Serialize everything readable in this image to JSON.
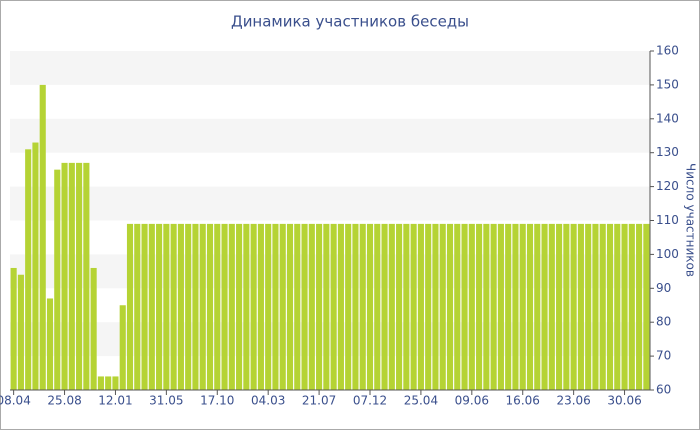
{
  "chart_data": {
    "type": "bar",
    "title": "Динамика участников беседы",
    "y_label": "Число участников",
    "categories": [
      "08.04",
      null,
      null,
      null,
      null,
      null,
      null,
      "25.08",
      null,
      null,
      null,
      null,
      null,
      null,
      "12.01",
      null,
      null,
      null,
      null,
      null,
      null,
      "31.05",
      null,
      null,
      null,
      null,
      null,
      null,
      "17.10",
      null,
      null,
      null,
      null,
      null,
      null,
      "04.03",
      null,
      null,
      null,
      null,
      null,
      null,
      "21.07",
      null,
      null,
      null,
      null,
      null,
      null,
      "07.12",
      null,
      null,
      null,
      null,
      null,
      null,
      "25.04",
      null,
      null,
      null,
      null,
      null,
      null,
      "09.06",
      null,
      null,
      null,
      null,
      null,
      null,
      "16.06",
      null,
      null,
      null,
      null,
      null,
      null,
      "23.06",
      null,
      null,
      null,
      null,
      null,
      null,
      "30.06",
      null,
      null,
      null
    ],
    "values": [
      96,
      94,
      131,
      133,
      150,
      87,
      125,
      127,
      127,
      127,
      127,
      96,
      64,
      64,
      64,
      85,
      109,
      109,
      109,
      109,
      109,
      109,
      109,
      109,
      109,
      109,
      109,
      109,
      109,
      109,
      109,
      109,
      109,
      109,
      109,
      109,
      109,
      109,
      109,
      109,
      109,
      109,
      109,
      109,
      109,
      109,
      109,
      109,
      109,
      109,
      109,
      109,
      109,
      109,
      109,
      109,
      109,
      109,
      109,
      109,
      109,
      109,
      109,
      109,
      109,
      109,
      109,
      109,
      109,
      109,
      109,
      109,
      109,
      109,
      109,
      109,
      109,
      109,
      109,
      109,
      109,
      109,
      109,
      109,
      109,
      109,
      109,
      109
    ],
    "color": "#b5d334",
    "ylim": [
      60,
      160
    ],
    "yticks": [
      60,
      70,
      80,
      90,
      100,
      110,
      120,
      130,
      140,
      150,
      160
    ],
    "grid": true
  }
}
